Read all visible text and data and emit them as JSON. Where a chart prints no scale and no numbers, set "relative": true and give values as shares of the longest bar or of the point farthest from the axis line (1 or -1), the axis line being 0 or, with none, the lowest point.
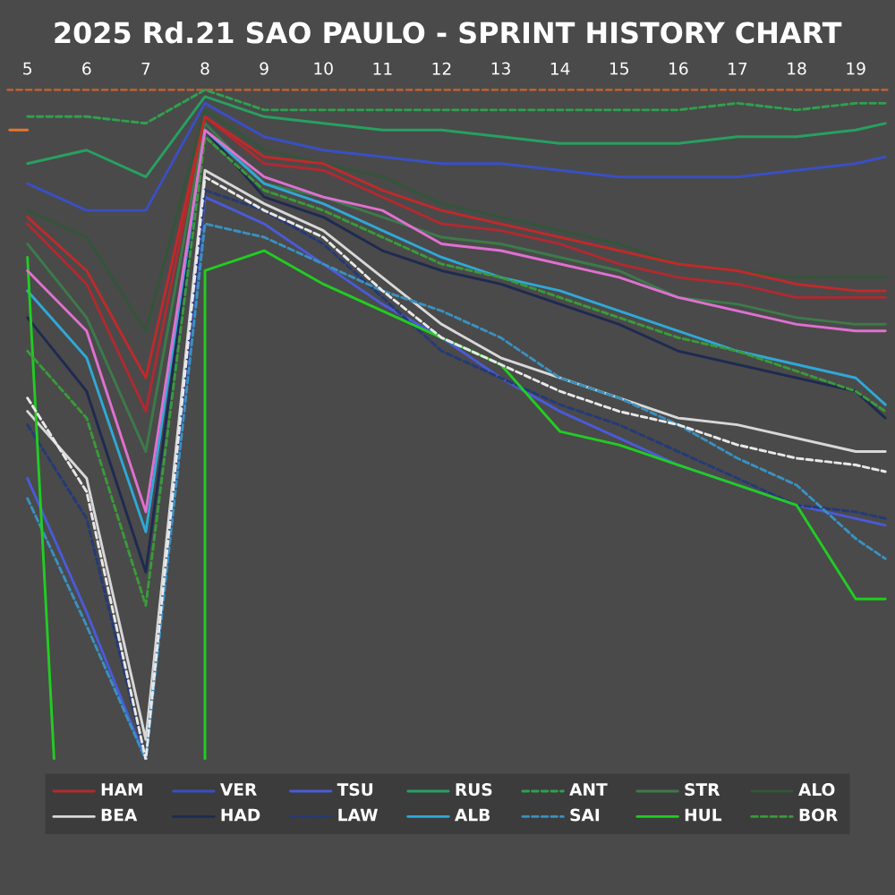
{
  "chart_data": {
    "type": "line",
    "title": "2025 Rd.21 SAO PAULO - SPRINT HISTORY CHART",
    "relative": true,
    "marker": "none",
    "legend": "bottom",
    "xlim": [
      4.65,
      19.55
    ],
    "xticks": [
      5,
      6,
      7,
      8,
      9,
      10,
      11,
      12,
      13,
      14,
      15,
      16,
      17,
      18,
      19
    ],
    "x": [
      5,
      6,
      7,
      8,
      9,
      10,
      11,
      12,
      13,
      14,
      15,
      16,
      17,
      18,
      19,
      19.5
    ],
    "ref_lines": [
      {
        "axis": "y",
        "value": 1,
        "color": "#d0622a",
        "line_style": "dashed"
      }
    ],
    "series": [
      {
        "name": "HAM",
        "color": "#b02a30",
        "values": [
          0.8,
          0.71,
          0.52,
          0.96,
          0.89,
          0.88,
          0.84,
          0.8,
          0.79,
          0.77,
          0.74,
          0.72,
          0.71,
          0.69,
          0.69,
          0.69
        ]
      },
      {
        "name": "VER",
        "color": "#3a4fc4",
        "values": [
          0.86,
          0.82,
          0.82,
          0.98,
          0.93,
          0.91,
          0.9,
          0.89,
          0.89,
          0.88,
          0.87,
          0.87,
          0.87,
          0.88,
          0.89,
          0.9
        ]
      },
      {
        "name": "TSU",
        "color": "#4a5ad8",
        "values": [
          0.42,
          0.22,
          0,
          0.84,
          0.8,
          0.74,
          0.68,
          0.63,
          0.57,
          0.52,
          0.48,
          0.44,
          0.41,
          0.38,
          0.36,
          0.35
        ]
      },
      {
        "name": "RUS",
        "color": "#27a060",
        "values": [
          0.89,
          0.91,
          0.87,
          0.99,
          0.96,
          0.95,
          0.94,
          0.94,
          0.93,
          0.92,
          0.92,
          0.92,
          0.93,
          0.93,
          0.94,
          0.95
        ]
      },
      {
        "name": "ANT",
        "color": "#2fa04f",
        "line_style": "dashed",
        "values": [
          0.96,
          0.96,
          0.95,
          1,
          0.97,
          0.97,
          0.97,
          0.97,
          0.97,
          0.97,
          0.97,
          0.97,
          0.98,
          0.97,
          0.98,
          0.98
        ]
      },
      {
        "name": "STR",
        "color": "#3d7a4a",
        "values": [
          0.77,
          0.66,
          0.46,
          0.95,
          0.86,
          0.84,
          0.81,
          0.78,
          0.77,
          0.75,
          0.73,
          0.69,
          0.68,
          0.66,
          0.65,
          0.65
        ]
      },
      {
        "name": "ALO",
        "color": "#33553a",
        "values": [
          0.82,
          0.78,
          0.64,
          0.97,
          0.91,
          0.89,
          0.87,
          0.83,
          0.81,
          0.79,
          0.77,
          0.74,
          0.73,
          0.72,
          0.72,
          0.72
        ]
      },
      {
        "name": "BEA",
        "color": "#d8d8d8",
        "values": [
          0.52,
          0.42,
          0.03,
          0.88,
          0.83,
          0.79,
          0.72,
          0.65,
          0.6,
          0.57,
          0.54,
          0.51,
          0.5,
          0.48,
          0.46,
          0.46
        ]
      },
      {
        "name": "HAD",
        "color": "#1e2a50",
        "values": [
          0.66,
          0.55,
          0.28,
          0.94,
          0.84,
          0.81,
          0.76,
          0.73,
          0.71,
          0.68,
          0.65,
          0.61,
          0.59,
          0.57,
          0.55,
          0.51
        ]
      },
      {
        "name": "LAW",
        "color": "#243a78",
        "line_style": "dashed",
        "values": [
          0.5,
          0.36,
          0,
          0.85,
          0.82,
          0.77,
          0.69,
          0.61,
          0.57,
          0.53,
          0.5,
          0.46,
          0.42,
          0.38,
          0.37,
          0.36
        ]
      },
      {
        "name": "ALB",
        "color": "#2fa8d8",
        "values": [
          0.7,
          0.6,
          0.34,
          0.94,
          0.86,
          0.83,
          0.79,
          0.75,
          0.72,
          0.7,
          0.67,
          0.64,
          0.61,
          0.59,
          0.57,
          0.53
        ]
      },
      {
        "name": "SAI",
        "color": "#3a90c0",
        "line_style": "dashed",
        "values": [
          0.39,
          0.2,
          0,
          0.8,
          0.78,
          0.74,
          0.7,
          0.67,
          0.63,
          0.57,
          0.54,
          0.5,
          0.45,
          0.41,
          0.33,
          0.3
        ]
      },
      {
        "name": "HUL",
        "color": "#22cc22",
        "x": [
          5,
          5.45,
          6.5,
          8,
          8,
          9,
          10,
          11,
          12,
          13,
          14,
          15,
          16,
          17,
          18,
          19,
          19.5
        ],
        "values": [
          0.75,
          0,
          null,
          0,
          0.73,
          0.76,
          0.71,
          0.67,
          0.63,
          0.59,
          0.49,
          0.47,
          0.44,
          0.41,
          0.38,
          0.24,
          0.24
        ]
      },
      {
        "name": "BOR",
        "color": "#3a9a3a",
        "line_style": "dashed",
        "values": [
          0.61,
          0.51,
          0.23,
          0.93,
          0.85,
          0.82,
          0.78,
          0.74,
          0.72,
          0.69,
          0.66,
          0.63,
          0.61,
          0.58,
          0.55,
          0.52
        ]
      },
      {
        "color": "#c02a2a",
        "values": [
          0.81,
          0.73,
          0.57,
          0.96,
          0.9,
          0.89,
          0.85,
          0.82,
          0.8,
          0.78,
          0.76,
          0.74,
          0.73,
          0.71,
          0.7,
          0.7
        ]
      },
      {
        "color": "#e070d0",
        "values": [
          0.73,
          0.64,
          0.37,
          0.94,
          0.87,
          0.84,
          0.82,
          0.77,
          0.76,
          0.74,
          0.72,
          0.69,
          0.67,
          0.65,
          0.64,
          0.64
        ]
      },
      {
        "color": "#e8e8e8",
        "line_style": "dashed",
        "values": [
          0.54,
          0.4,
          0,
          0.87,
          0.82,
          0.78,
          0.7,
          0.63,
          0.59,
          0.55,
          0.52,
          0.5,
          0.47,
          0.45,
          0.44,
          0.43
        ]
      },
      {
        "color": "#e8742a",
        "x": [
          4.7,
          5
        ],
        "values": [
          0.94,
          0.94
        ]
      }
    ]
  }
}
